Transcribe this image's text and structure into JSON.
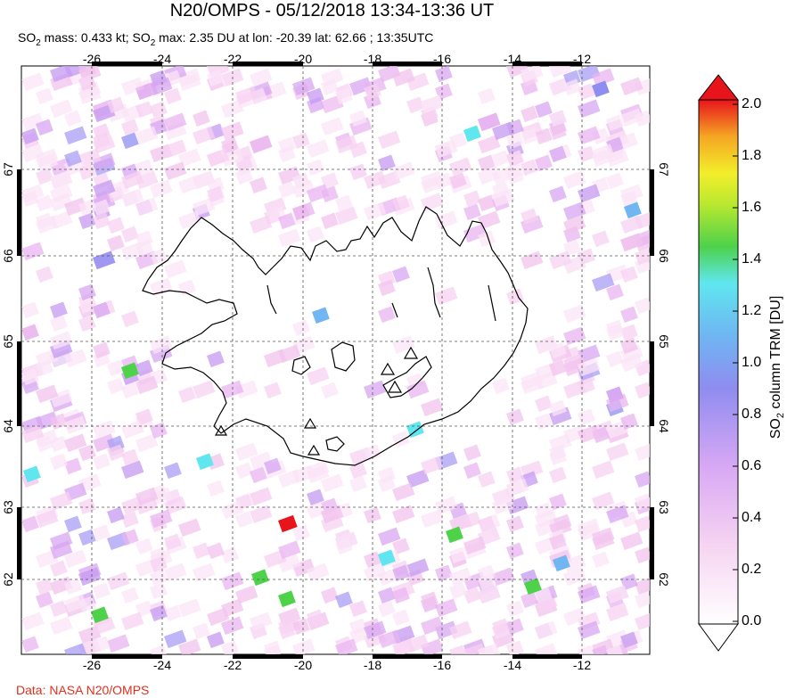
{
  "header": {
    "title": "N20/OMPS - 05/12/2018 13:34-13:36 UT",
    "subtitle_prefix": "SO",
    "subtitle_sub": "2",
    "subtitle_mass": " mass: 0.433 kt; SO",
    "subtitle_sub2": "2",
    "subtitle_rest": " max: 2.35 DU at lon: -20.39 lat: 62.66 ; 13:35UTC"
  },
  "map": {
    "lon_ticks": [
      "-26",
      "-24",
      "-22",
      "-20",
      "-18",
      "-16",
      "-14",
      "-12"
    ],
    "lat_ticks": [
      "67",
      "66",
      "65",
      "64",
      "63",
      "62"
    ],
    "region": "Iceland",
    "volcano_marker": "triangle",
    "max_pixel_color": "#e8141c"
  },
  "colorbar": {
    "labels": [
      "2.0",
      "1.8",
      "1.6",
      "1.4",
      "1.2",
      "1.0",
      "0.8",
      "0.6",
      "0.4",
      "0.2",
      "0.0"
    ],
    "title_prefix": "SO",
    "title_sub": "2",
    "title_rest": " column TRM [DU]",
    "colors": [
      "#ffffff",
      "#f4c6ee",
      "#c38ef0",
      "#7d88f0",
      "#5fe6ef",
      "#4dd24a",
      "#dcee2c",
      "#f5a623",
      "#e8141c"
    ]
  },
  "footer": {
    "credit": "Data: NASA N20/OMPS"
  }
}
